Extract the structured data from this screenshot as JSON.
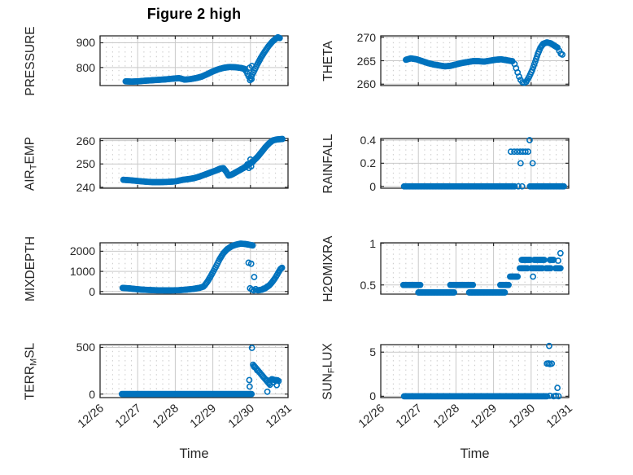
{
  "figure": {
    "title": "Figure 2 high",
    "xlabel": "Time",
    "xtick_values": [
      0,
      1,
      2,
      3,
      4,
      5
    ],
    "xtick_labels": [
      "12/26",
      "12/27",
      "12/28",
      "12/29",
      "12/30",
      "12/31"
    ],
    "colors": {
      "marker": "#0072BD",
      "grid_major": "#c9c9c9",
      "grid_minor": "#cccccc",
      "axes": "#2b2b2b",
      "text": "#262626"
    }
  },
  "chart_data": [
    {
      "name": "PRESSURE",
      "type": "scatter",
      "col": "left",
      "row": 0,
      "label_parts": [
        {
          "t": "PRESSURE",
          "sub": false
        }
      ],
      "xlim": [
        0,
        5
      ],
      "ylim": [
        727,
        928
      ],
      "ytick_values": [
        800,
        900
      ],
      "ytick_labels": [
        "800",
        "900"
      ],
      "minor_y": 20,
      "runs": [
        {
          "x": [
            0.68,
            0.85,
            1.0,
            1.15,
            1.35,
            1.55,
            1.75,
            1.95,
            2.1,
            2.25,
            2.4,
            2.55,
            2.7,
            2.85,
            3.0,
            3.15,
            3.3,
            3.45,
            3.6,
            3.75,
            3.85
          ],
          "y": [
            744,
            743,
            744,
            746,
            748,
            750,
            752,
            755,
            757,
            751,
            753,
            757,
            763,
            773,
            784,
            793,
            799,
            802,
            801,
            798,
            794
          ]
        },
        {
          "x": [
            4.0,
            4.08,
            4.18,
            4.28,
            4.38,
            4.48,
            4.58,
            4.66,
            4.73,
            4.78
          ],
          "y": [
            757,
            780,
            812,
            840,
            864,
            886,
            904,
            915,
            922,
            919
          ]
        }
      ],
      "points": [
        [
          3.88,
          786
        ],
        [
          3.92,
          775
        ],
        [
          3.95,
          764
        ],
        [
          3.99,
          749
        ],
        [
          4.03,
          753
        ],
        [
          3.98,
          799
        ],
        [
          4.04,
          806
        ]
      ]
    },
    {
      "name": "THETA",
      "type": "scatter",
      "col": "right",
      "row": 0,
      "label_parts": [
        {
          "t": "THETA",
          "sub": false
        }
      ],
      "xlim": [
        0,
        5
      ],
      "ylim": [
        259.7,
        270.3
      ],
      "ytick_values": [
        260,
        265,
        270
      ],
      "ytick_labels": [
        "260",
        "265",
        "270"
      ],
      "minor_y": 1,
      "runs": [
        {
          "x": [
            0.67,
            0.8,
            0.95,
            1.1,
            1.25,
            1.4,
            1.55,
            1.7,
            1.85,
            2.0,
            2.15,
            2.3,
            2.45,
            2.6,
            2.75,
            2.9,
            3.05,
            3.2,
            3.35,
            3.5
          ],
          "y": [
            265.2,
            265.5,
            265.3,
            264.9,
            264.5,
            264.2,
            264.0,
            263.8,
            263.9,
            264.2,
            264.5,
            264.7,
            264.9,
            264.9,
            264.8,
            265.0,
            265.2,
            265.3,
            265.1,
            264.9
          ]
        },
        {
          "x": [
            3.87,
            3.95,
            4.03,
            4.11,
            4.18,
            4.25,
            4.32,
            4.42,
            4.52,
            4.62,
            4.7
          ],
          "y": [
            260.5,
            261.6,
            263.0,
            264.8,
            266.5,
            267.8,
            268.6,
            268.9,
            268.7,
            268.2,
            267.8
          ]
        }
      ],
      "points": [
        [
          3.56,
          264.3
        ],
        [
          3.6,
          263.4
        ],
        [
          3.64,
          262.5
        ],
        [
          3.68,
          261.6
        ],
        [
          3.72,
          260.9
        ],
        [
          3.77,
          260.4
        ],
        [
          3.82,
          260.3
        ],
        [
          4.75,
          267.1
        ],
        [
          4.79,
          266.5
        ],
        [
          4.83,
          266.3
        ]
      ]
    },
    {
      "name": "AIR_TEMP",
      "type": "scatter",
      "col": "left",
      "row": 1,
      "label_parts": [
        {
          "t": "AIR",
          "sub": false
        },
        {
          "t": "T",
          "sub": true
        },
        {
          "t": "EMP",
          "sub": false
        }
      ],
      "xlim": [
        0,
        5
      ],
      "ylim": [
        239.6,
        260.9
      ],
      "ytick_values": [
        240,
        250,
        260
      ],
      "ytick_labels": [
        "240",
        "250",
        "260"
      ],
      "minor_y": 2,
      "runs": [
        {
          "x": [
            0.62,
            0.8,
            1.0,
            1.2,
            1.4,
            1.6,
            1.8,
            2.0,
            2.2,
            2.35,
            2.5,
            2.65,
            2.8,
            2.95,
            3.1,
            3.2,
            3.28,
            3.35,
            3.42,
            3.5,
            3.6,
            3.7,
            3.8,
            3.9,
            4.0,
            4.1,
            4.2,
            4.3,
            4.4,
            4.5,
            4.6,
            4.7,
            4.85
          ],
          "y": [
            243.2,
            243.0,
            242.7,
            242.4,
            242.2,
            242.2,
            242.3,
            242.5,
            243.2,
            243.5,
            243.9,
            244.6,
            245.5,
            246.4,
            247.3,
            248.0,
            248.2,
            246.8,
            245.0,
            245.4,
            246.3,
            247.2,
            248.1,
            249.1,
            250.3,
            251.6,
            253.2,
            255.2,
            257.2,
            258.9,
            260.1,
            260.5,
            260.7
          ]
        }
      ],
      "points": [
        [
          3.92,
          249.8
        ],
        [
          3.96,
          248.3
        ],
        [
          4.0,
          251.9
        ],
        [
          4.02,
          249.0
        ],
        [
          4.06,
          250.8
        ]
      ]
    },
    {
      "name": "RAINFALL",
      "type": "scatter",
      "col": "right",
      "row": 1,
      "label_parts": [
        {
          "t": "RAINFALL",
          "sub": false
        }
      ],
      "xlim": [
        0,
        5
      ],
      "ylim": [
        -0.016,
        0.414
      ],
      "ytick_values": [
        0,
        0.2,
        0.4
      ],
      "ytick_labels": [
        "0",
        "0.2",
        "0.4"
      ],
      "minor_y": 0.04,
      "runs": [
        {
          "x": [
            0.62,
            3.56
          ],
          "y": [
            0,
            0
          ]
        },
        {
          "x": [
            3.97,
            4.87
          ],
          "y": [
            0,
            0
          ]
        }
      ],
      "points": [
        [
          3.66,
          0
        ],
        [
          3.76,
          0
        ],
        [
          3.46,
          0.3
        ],
        [
          3.55,
          0.3
        ],
        [
          3.63,
          0.3
        ],
        [
          3.71,
          0.3
        ],
        [
          3.78,
          0.3
        ],
        [
          3.85,
          0.3
        ],
        [
          3.92,
          0.3
        ],
        [
          3.72,
          0.2
        ],
        [
          4.04,
          0.2
        ],
        [
          3.96,
          0.4
        ]
      ]
    },
    {
      "name": "MIXDEPTH",
      "type": "scatter",
      "col": "left",
      "row": 2,
      "label_parts": [
        {
          "t": "MIXDEPTH",
          "sub": false
        }
      ],
      "xlim": [
        0,
        5
      ],
      "ylim": [
        -130,
        2420
      ],
      "ytick_values": [
        0,
        1000,
        2000
      ],
      "ytick_labels": [
        "0",
        "1000",
        "2000"
      ],
      "minor_y": 200,
      "runs": [
        {
          "x": [
            0.6,
            0.75,
            0.9,
            1.1,
            1.3,
            1.5,
            1.7,
            1.9,
            2.1,
            2.3,
            2.5,
            2.65,
            2.75
          ],
          "y": [
            180,
            160,
            130,
            95,
            75,
            60,
            55,
            55,
            65,
            95,
            135,
            185,
            245
          ]
        },
        {
          "x": [
            2.78,
            2.86,
            2.94,
            3.02,
            3.1,
            3.18,
            3.28,
            3.38,
            3.5,
            3.62,
            3.74,
            3.86,
            3.98,
            4.06
          ],
          "y": [
            300,
            500,
            750,
            1020,
            1300,
            1600,
            1900,
            2100,
            2250,
            2330,
            2380,
            2360,
            2320,
            2290
          ]
        },
        {
          "x": [
            4.2,
            4.3,
            4.4,
            4.5,
            4.58,
            4.65,
            4.71,
            4.76,
            4.8,
            4.84
          ],
          "y": [
            60,
            90,
            170,
            300,
            470,
            650,
            830,
            1000,
            1120,
            1180
          ]
        }
      ],
      "points": [
        [
          3.95,
          1430
        ],
        [
          4.02,
          1380
        ],
        [
          4.1,
          720
        ],
        [
          3.99,
          160
        ],
        [
          4.04,
          100
        ],
        [
          4.09,
          55
        ],
        [
          4.14,
          120
        ],
        [
          4.35,
          140
        ],
        [
          4.45,
          250
        ]
      ]
    },
    {
      "name": "H2OMIXRA",
      "type": "scatter",
      "col": "right",
      "row": 2,
      "label_parts": [
        {
          "t": "H2OMIXRA",
          "sub": false
        }
      ],
      "xlim": [
        0,
        5
      ],
      "ylim": [
        0.39,
        1.005
      ],
      "ytick_values": [
        0.5,
        1
      ],
      "ytick_labels": [
        "0.5",
        "1"
      ],
      "minor_y": 0.05,
      "runs": [
        {
          "x": [
            0.6,
            1.05
          ],
          "y": [
            0.5,
            0.5
          ]
        },
        {
          "x": [
            1.0,
            1.95
          ],
          "y": [
            0.41,
            0.41
          ]
        },
        {
          "x": [
            1.85,
            2.45
          ],
          "y": [
            0.5,
            0.5
          ]
        },
        {
          "x": [
            2.35,
            3.3
          ],
          "y": [
            0.41,
            0.41
          ]
        },
        {
          "x": [
            3.18,
            3.4
          ],
          "y": [
            0.5,
            0.5
          ]
        },
        {
          "x": [
            3.44,
            3.64
          ],
          "y": [
            0.6,
            0.6
          ]
        },
        {
          "x": [
            3.7,
            3.9
          ],
          "y": [
            0.7,
            0.7
          ]
        },
        {
          "x": [
            4.0,
            4.3
          ],
          "y": [
            0.7,
            0.7
          ]
        },
        {
          "x": [
            4.4,
            4.52
          ],
          "y": [
            0.7,
            0.7
          ]
        },
        {
          "x": [
            4.65,
            4.78
          ],
          "y": [
            0.7,
            0.7
          ]
        },
        {
          "x": [
            3.75,
            3.95
          ],
          "y": [
            0.8,
            0.8
          ]
        },
        {
          "x": [
            4.08,
            4.35
          ],
          "y": [
            0.8,
            0.8
          ]
        },
        {
          "x": [
            4.5,
            4.6
          ],
          "y": [
            0.8,
            0.8
          ]
        }
      ],
      "points": [
        [
          4.05,
          0.6
        ],
        [
          3.98,
          0.8
        ],
        [
          4.72,
          0.79
        ],
        [
          4.78,
          0.88
        ]
      ]
    },
    {
      "name": "TERR_MSL",
      "type": "scatter",
      "col": "left",
      "row": 3,
      "label_parts": [
        {
          "t": "TERR",
          "sub": false
        },
        {
          "t": "M",
          "sub": true
        },
        {
          "t": "SL",
          "sub": false
        }
      ],
      "xlim": [
        0,
        5
      ],
      "ylim": [
        -38,
        530
      ],
      "ytick_values": [
        0,
        500
      ],
      "ytick_labels": [
        "0",
        "500"
      ],
      "minor_y": 50,
      "runs": [
        {
          "x": [
            0.58,
            4.03
          ],
          "y": [
            0,
            0
          ]
        },
        {
          "x": [
            4.07,
            4.3,
            4.52
          ],
          "y": [
            315,
            205,
            100
          ]
        },
        {
          "x": [
            4.57,
            4.65,
            4.72
          ],
          "y": [
            160,
            150,
            148
          ]
        }
      ],
      "points": [
        [
          4.04,
          495
        ],
        [
          3.97,
          150
        ],
        [
          3.98,
          80
        ],
        [
          4.1,
          292
        ],
        [
          4.18,
          255
        ],
        [
          4.44,
          150
        ],
        [
          4.5,
          118
        ],
        [
          4.45,
          25
        ],
        [
          4.62,
          128
        ],
        [
          4.7,
          96
        ],
        [
          4.75,
          140
        ]
      ]
    },
    {
      "name": "SUN_FLUX",
      "type": "scatter",
      "col": "right",
      "row": 3,
      "label_parts": [
        {
          "t": "SUN",
          "sub": false
        },
        {
          "t": "F",
          "sub": true
        },
        {
          "t": "LUX",
          "sub": false
        }
      ],
      "xlim": [
        0,
        5
      ],
      "ylim": [
        -0.15,
        5.85
      ],
      "ytick_values": [
        0,
        5
      ],
      "ytick_labels": [
        "0",
        "5"
      ],
      "minor_y": 0.5,
      "runs": [
        {
          "x": [
            0.62,
            4.42
          ],
          "y": [
            0,
            0
          ]
        }
      ],
      "points": [
        [
          4.48,
          5.7
        ],
        [
          4.42,
          3.7
        ],
        [
          4.46,
          3.72
        ],
        [
          4.5,
          3.65
        ],
        [
          4.55,
          3.7
        ],
        [
          4.7,
          0.95
        ],
        [
          4.5,
          0.05
        ],
        [
          4.6,
          0
        ],
        [
          4.66,
          0.05
        ],
        [
          4.73,
          0
        ]
      ]
    }
  ]
}
